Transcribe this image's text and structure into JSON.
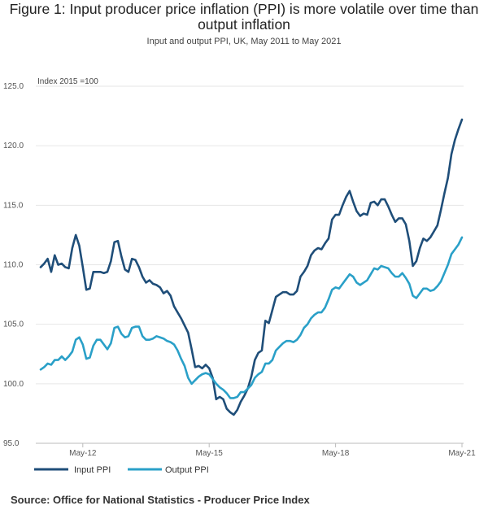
{
  "chart_data": {
    "type": "line",
    "title": "Figure 1: Input producer price inflation (PPI) is more volatile over time than output inflation",
    "title_lines": [
      "Figure 1: Input producer price inflation (PPI) is more volatile over time than",
      "output inflation"
    ],
    "subtitle": "Input and output PPI, UK, May 2011 to May 2021",
    "ylabel": "Index 2015 =100",
    "ylim": [
      95.0,
      125.0
    ],
    "yticks": [
      "95.0",
      "100.0",
      "105.0",
      "110.0",
      "115.0",
      "120.0",
      "125.0"
    ],
    "grid": true,
    "x_start": "May-11",
    "x_end": "May-21",
    "xticks": [
      {
        "label": "May-12",
        "month_index": 12
      },
      {
        "label": "May-15",
        "month_index": 48
      },
      {
        "label": "May-18",
        "month_index": 84
      },
      {
        "label": "May-21",
        "month_index": 120
      }
    ],
    "legend_position": "bottom-left",
    "series": [
      {
        "name": "Input PPI",
        "color": "#1f4e79",
        "values": [
          109.8,
          110.1,
          110.5,
          109.4,
          110.8,
          110.0,
          110.1,
          109.8,
          109.7,
          111.4,
          112.5,
          111.6,
          109.8,
          107.9,
          108.0,
          109.4,
          109.4,
          109.4,
          109.3,
          109.4,
          110.3,
          111.9,
          112.0,
          110.7,
          109.6,
          109.4,
          110.5,
          110.4,
          109.8,
          109.0,
          108.5,
          108.7,
          108.4,
          108.3,
          108.1,
          107.6,
          107.8,
          107.4,
          106.5,
          106.0,
          105.5,
          104.9,
          104.3,
          102.9,
          101.4,
          101.5,
          101.3,
          101.6,
          101.3,
          100.5,
          98.7,
          98.9,
          98.7,
          97.9,
          97.6,
          97.4,
          97.8,
          98.5,
          99.0,
          99.6,
          100.6,
          102.0,
          102.6,
          102.8,
          105.3,
          105.1,
          106.2,
          107.3,
          107.5,
          107.7,
          107.7,
          107.5,
          107.5,
          107.8,
          109.0,
          109.4,
          109.9,
          110.8,
          111.2,
          111.4,
          111.3,
          111.8,
          112.2,
          113.8,
          114.2,
          114.2,
          115.0,
          115.7,
          116.2,
          115.3,
          114.5,
          114.1,
          114.3,
          114.2,
          115.2,
          115.3,
          115.0,
          115.5,
          115.5,
          114.9,
          114.2,
          113.6,
          113.9,
          113.9,
          113.4,
          112.0,
          109.9,
          110.3,
          111.4,
          112.2,
          112.0,
          112.3,
          112.8,
          113.3,
          114.6,
          116.0,
          117.3,
          119.3,
          120.5,
          121.4,
          122.2
        ]
      },
      {
        "name": "Output PPI",
        "color": "#2aa0c8",
        "values": [
          101.2,
          101.4,
          101.7,
          101.6,
          102.0,
          102.0,
          102.3,
          102.0,
          102.3,
          102.7,
          103.7,
          103.9,
          103.3,
          102.1,
          102.2,
          103.2,
          103.7,
          103.7,
          103.3,
          102.9,
          103.4,
          104.7,
          104.8,
          104.2,
          103.9,
          104.0,
          104.7,
          104.8,
          104.8,
          104.0,
          103.7,
          103.7,
          103.8,
          104.0,
          103.9,
          103.8,
          103.6,
          103.5,
          103.3,
          102.8,
          102.1,
          101.5,
          100.5,
          100.0,
          100.3,
          100.6,
          100.8,
          100.9,
          100.8,
          100.4,
          100.0,
          99.7,
          99.5,
          99.2,
          98.8,
          98.8,
          98.9,
          99.3,
          99.3,
          99.6,
          99.9,
          100.5,
          100.8,
          101.0,
          101.7,
          101.7,
          102.0,
          102.8,
          103.1,
          103.4,
          103.6,
          103.6,
          103.5,
          103.7,
          104.1,
          104.7,
          105.0,
          105.5,
          105.8,
          106.0,
          106.0,
          106.4,
          107.1,
          107.9,
          108.1,
          108.0,
          108.4,
          108.8,
          109.2,
          109.0,
          108.5,
          108.3,
          108.5,
          108.7,
          109.2,
          109.7,
          109.6,
          109.9,
          109.8,
          109.7,
          109.3,
          109.0,
          109.0,
          109.3,
          108.9,
          108.4,
          107.4,
          107.2,
          107.6,
          108.0,
          108.0,
          107.8,
          107.9,
          108.2,
          108.6,
          109.3,
          110.0,
          110.9,
          111.3,
          111.7,
          112.3
        ]
      }
    ]
  },
  "source": "Source: Office for National Statistics - Producer Price Index"
}
